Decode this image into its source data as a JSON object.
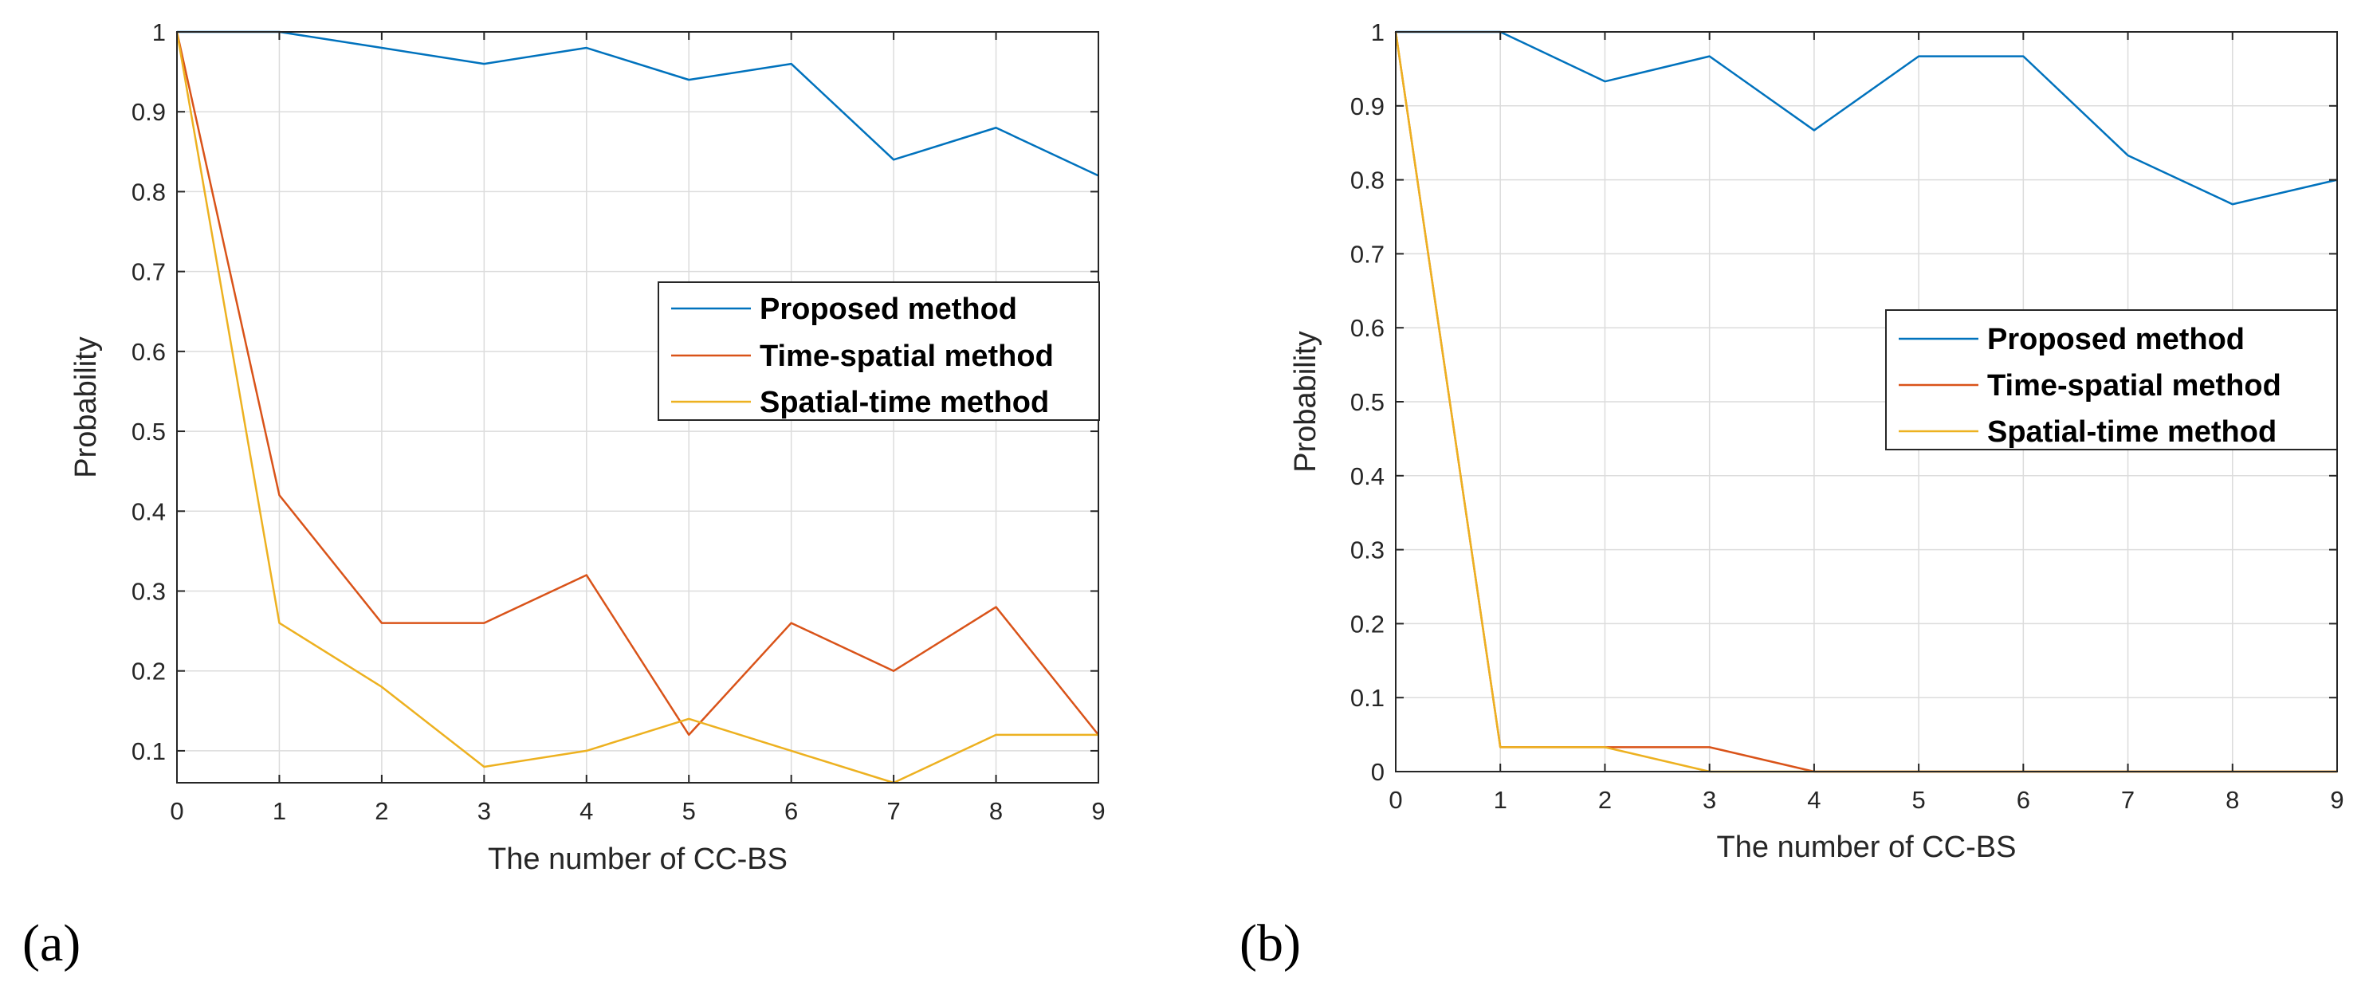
{
  "colors": {
    "proposed": "#0072BD",
    "time_spatial": "#D95319",
    "spatial_time": "#EDB120",
    "grid": "#DCDCDC",
    "axis": "#262626"
  },
  "chart_data": [
    {
      "panel_label": "(a)",
      "type": "line",
      "xlabel": "The number of CC-BS",
      "ylabel": "Probability",
      "xlim": [
        0,
        9
      ],
      "ylim": [
        0.06,
        1
      ],
      "xticks": [
        0,
        1,
        2,
        3,
        4,
        5,
        6,
        7,
        8,
        9
      ],
      "xtick_labels": [
        "0",
        "1",
        "2",
        "3",
        "4",
        "5",
        "6",
        "7",
        "8",
        "9"
      ],
      "yticks": [
        0.1,
        0.2,
        0.3,
        0.4,
        0.5,
        0.6,
        0.7,
        0.8,
        0.9,
        1
      ],
      "ytick_labels": [
        "0.1",
        "0.2",
        "0.3",
        "0.4",
        "0.5",
        "0.6",
        "0.7",
        "0.8",
        "0.9",
        "1"
      ],
      "grid": true,
      "legend_position": "center-right",
      "x": [
        0,
        1,
        2,
        3,
        4,
        5,
        6,
        7,
        8,
        9
      ],
      "series": [
        {
          "name": "Proposed method",
          "color_key": "proposed",
          "values": [
            1,
            1,
            0.98,
            0.96,
            0.98,
            0.94,
            0.96,
            0.84,
            0.88,
            0.82
          ]
        },
        {
          "name": "Time-spatial method",
          "color_key": "time_spatial",
          "values": [
            1,
            0.42,
            0.26,
            0.26,
            0.32,
            0.12,
            0.26,
            0.2,
            0.28,
            0.12
          ]
        },
        {
          "name": "Spatial-time method",
          "color_key": "spatial_time",
          "values": [
            1,
            0.26,
            0.18,
            0.08,
            0.1,
            0.14,
            0.1,
            0.06,
            0.12,
            0.12
          ]
        }
      ]
    },
    {
      "panel_label": "(b)",
      "type": "line",
      "xlabel": "The number of CC-BS",
      "ylabel": "Probability",
      "xlim": [
        0,
        9
      ],
      "ylim": [
        0,
        1
      ],
      "xticks": [
        0,
        1,
        2,
        3,
        4,
        5,
        6,
        7,
        8,
        9
      ],
      "xtick_labels": [
        "0",
        "1",
        "2",
        "3",
        "4",
        "5",
        "6",
        "7",
        "8",
        "9"
      ],
      "yticks": [
        0,
        0.1,
        0.2,
        0.3,
        0.4,
        0.5,
        0.6,
        0.7,
        0.8,
        0.9,
        1
      ],
      "ytick_labels": [
        "0",
        "0.1",
        "0.2",
        "0.3",
        "0.4",
        "0.5",
        "0.6",
        "0.7",
        "0.8",
        "0.9",
        "1"
      ],
      "grid": true,
      "legend_position": "center-right",
      "x": [
        0,
        1,
        2,
        3,
        4,
        5,
        6,
        7,
        8,
        9
      ],
      "series": [
        {
          "name": "Proposed method",
          "color_key": "proposed",
          "values": [
            1,
            1,
            0.933,
            0.967,
            0.867,
            0.967,
            0.967,
            0.833,
            0.767,
            0.8
          ]
        },
        {
          "name": "Time-spatial method",
          "color_key": "time_spatial",
          "values": [
            1,
            0.033,
            0.033,
            0.033,
            0,
            0,
            0,
            0,
            0,
            0
          ]
        },
        {
          "name": "Spatial-time method",
          "color_key": "spatial_time",
          "values": [
            1,
            0.033,
            0.033,
            0,
            0,
            0,
            0,
            0,
            0,
            0
          ]
        }
      ]
    }
  ]
}
